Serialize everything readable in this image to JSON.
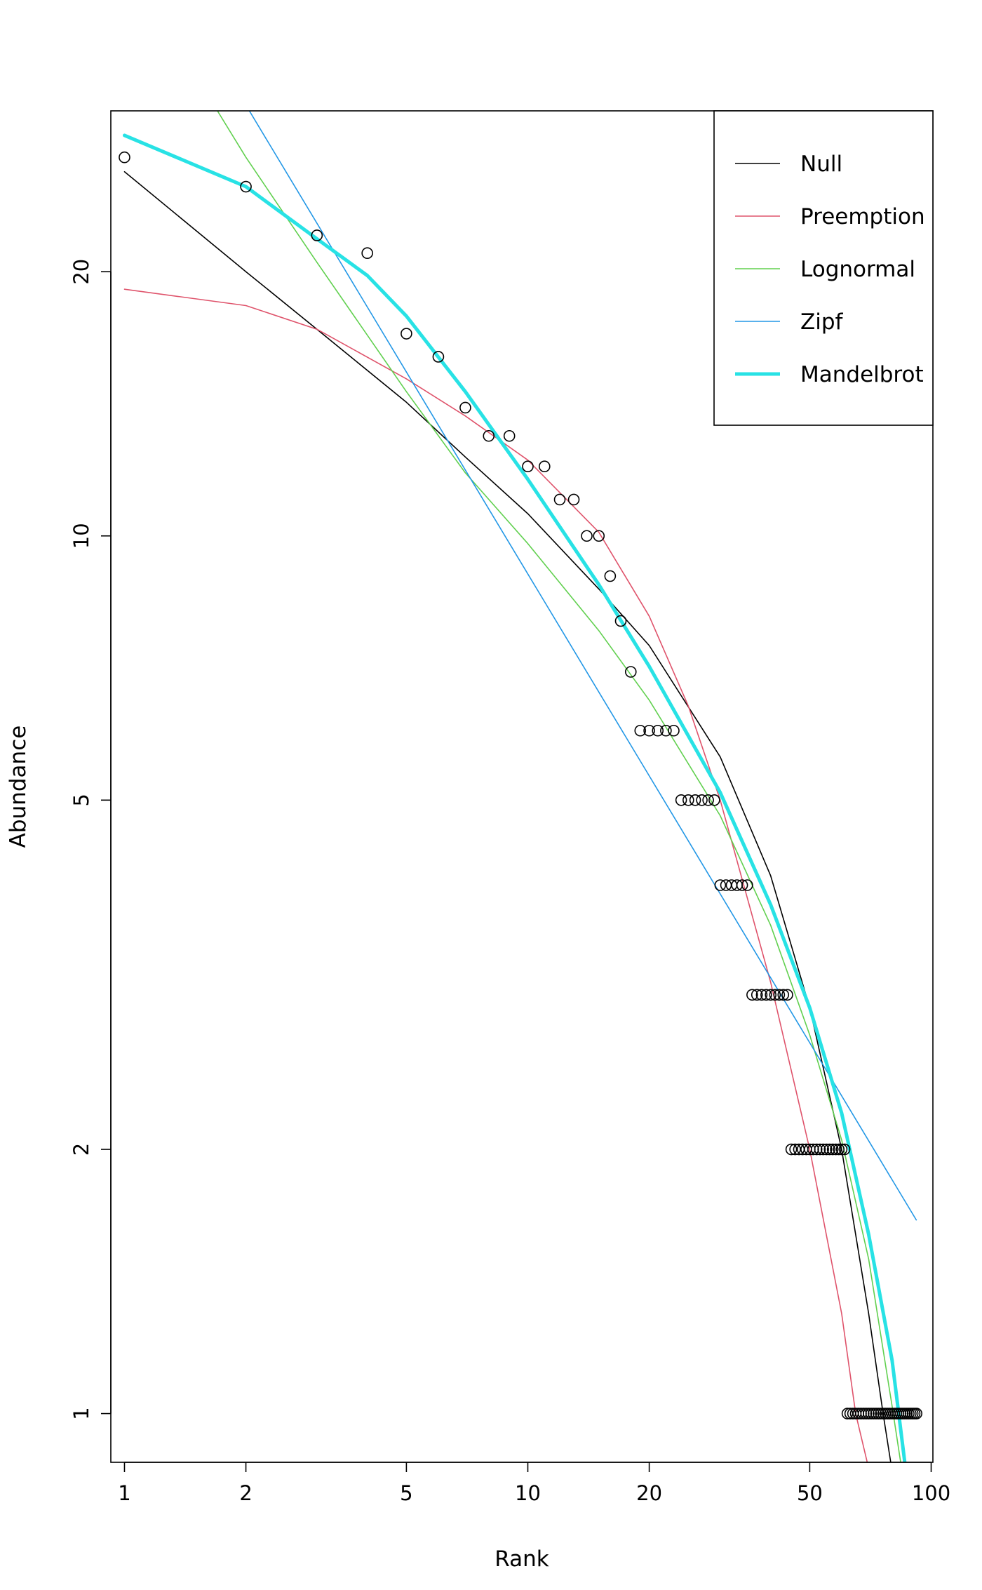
{
  "chart_data": {
    "type": "line",
    "title": "",
    "xlabel": "Rank",
    "ylabel": "Abundance",
    "xscale": "log",
    "yscale": "log",
    "xlim": [
      0.925,
      101
    ],
    "ylim": [
      0.88,
      30.5
    ],
    "x_ticks": [
      1,
      2,
      5,
      10,
      20,
      50,
      100
    ],
    "y_ticks": [
      1,
      2,
      5,
      10,
      20
    ],
    "grid": false,
    "legend_position": "top-right",
    "observed": {
      "abundance": [
        27,
        25,
        22,
        21,
        17,
        16,
        14,
        13,
        13,
        12,
        12,
        11,
        11,
        10,
        10,
        9,
        8,
        7,
        6,
        6,
        6,
        6,
        6,
        5,
        5,
        5,
        5,
        5,
        5,
        4,
        4,
        4,
        4,
        4,
        4,
        3,
        3,
        3,
        3,
        3,
        3,
        3,
        3,
        3,
        2,
        2,
        2,
        2,
        2,
        2,
        2,
        2,
        2,
        2,
        2,
        2,
        2,
        2,
        2,
        2,
        2,
        1,
        1,
        1,
        1,
        1,
        1,
        1,
        1,
        1,
        1,
        1,
        1,
        1,
        1,
        1,
        1,
        1,
        1,
        1,
        1,
        1,
        1,
        1,
        1,
        1,
        1,
        1,
        1,
        1,
        1,
        1
      ]
    },
    "series": [
      {
        "name": "Null",
        "color": "#000000",
        "width": 1.6,
        "points": [
          [
            1,
            26
          ],
          [
            2,
            20
          ],
          [
            3,
            17.2
          ],
          [
            5,
            14.2
          ],
          [
            7,
            12.3
          ],
          [
            10,
            10.6
          ],
          [
            15,
            8.7
          ],
          [
            20,
            7.5
          ],
          [
            30,
            5.6
          ],
          [
            40,
            4.1
          ],
          [
            50,
            2.9
          ],
          [
            60,
            2.0
          ],
          [
            70,
            1.3
          ],
          [
            76,
            1.0
          ],
          [
            82,
            0.8
          ]
        ]
      },
      {
        "name": "Preemption",
        "color": "#DF536B",
        "width": 1.6,
        "points": [
          [
            1,
            19.1
          ],
          [
            2,
            18.3
          ],
          [
            3,
            17.2
          ],
          [
            5,
            15.1
          ],
          [
            7,
            13.7
          ],
          [
            10,
            12.2
          ],
          [
            15,
            10.1
          ],
          [
            20,
            8.1
          ],
          [
            25,
            6.4
          ],
          [
            30,
            5.0
          ],
          [
            40,
            3.1
          ],
          [
            50,
            2.0
          ],
          [
            60,
            1.3
          ],
          [
            65,
            1.0
          ],
          [
            72,
            0.82
          ]
        ]
      },
      {
        "name": "Lognormal",
        "color": "#61D04F",
        "width": 1.6,
        "points": [
          [
            1.7,
            30.5
          ],
          [
            2,
            27
          ],
          [
            3,
            20.5
          ],
          [
            5,
            14.6
          ],
          [
            7,
            11.8
          ],
          [
            10,
            9.8
          ],
          [
            15,
            7.8
          ],
          [
            20,
            6.5
          ],
          [
            30,
            4.8
          ],
          [
            40,
            3.6
          ],
          [
            50,
            2.7
          ],
          [
            60,
            2.05
          ],
          [
            70,
            1.5
          ],
          [
            80,
            1.02
          ],
          [
            85,
            0.85
          ]
        ]
      },
      {
        "name": "Zipf",
        "color": "#2297E6",
        "width": 1.6,
        "points": [
          [
            2.04,
            30.5
          ],
          [
            92,
            1.66
          ]
        ]
      },
      {
        "name": "Mandelbrot",
        "color": "#28E2E5",
        "width": 5,
        "points": [
          [
            1,
            28.6
          ],
          [
            2,
            25
          ],
          [
            3,
            21.8
          ],
          [
            4,
            19.8
          ],
          [
            5,
            17.8
          ],
          [
            7,
            14.6
          ],
          [
            10,
            11.6
          ],
          [
            15,
            8.8
          ],
          [
            20,
            7.1
          ],
          [
            30,
            5.1
          ],
          [
            40,
            3.8
          ],
          [
            50,
            2.9
          ],
          [
            60,
            2.2
          ],
          [
            70,
            1.6
          ],
          [
            80,
            1.15
          ],
          [
            86,
            0.88
          ]
        ]
      }
    ]
  }
}
